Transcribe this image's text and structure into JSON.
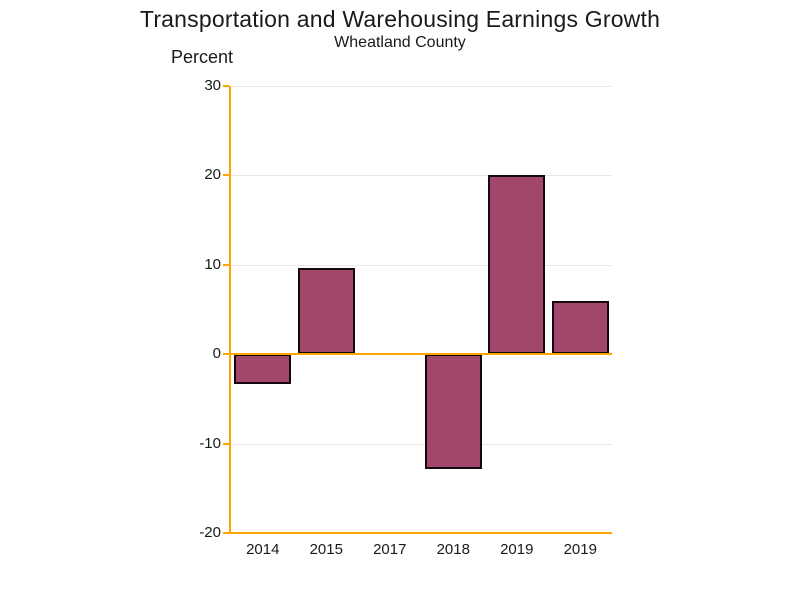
{
  "chart_data": {
    "type": "bar",
    "title": "Transportation and Warehousing Earnings Growth",
    "subtitle": "Wheatland County",
    "ylabel": "Percent",
    "xlabel": "",
    "categories": [
      "2014",
      "2015",
      "2017",
      "2018",
      "2019",
      "2019"
    ],
    "values": [
      -3.3,
      9.6,
      null,
      -12.8,
      20,
      6
    ],
    "ylim": [
      -20,
      30
    ],
    "yticks": [
      30,
      20,
      10,
      0,
      -10,
      -20
    ],
    "grid": "horizontal-on",
    "legend": "none",
    "colors": {
      "bar_fill": "#A2476C",
      "bar_border": "#16080F",
      "axis_line": "#FFA500",
      "gridline": "#E6E6E6",
      "text": "#1A1A1A",
      "background": "#FFFFFF"
    }
  }
}
